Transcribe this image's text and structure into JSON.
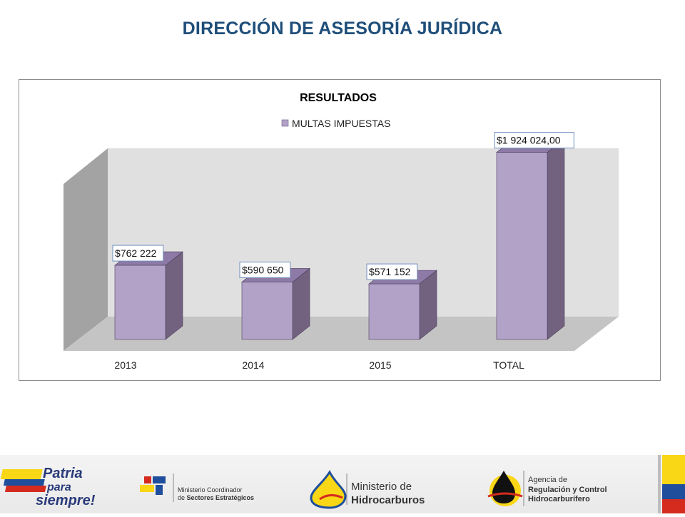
{
  "page": {
    "title": "DIRECCIÓN DE ASESORÍA JURÍDICA"
  },
  "chart_data": {
    "type": "bar",
    "title": "RESULTADOS",
    "categories": [
      "2013",
      "2014",
      "2015",
      "TOTAL"
    ],
    "series": [
      {
        "name": "MULTAS IMPUESTAS",
        "values": [
          762222,
          590650,
          571152,
          1924024
        ],
        "labels": [
          "$762 222",
          "$590 650",
          "$571 152",
          "$1 924 024,00"
        ],
        "color": "#B3A2C7"
      }
    ],
    "ylim": [
      0,
      2200000
    ],
    "grid": false,
    "legend_position": "top",
    "style": "3d"
  },
  "footer": {
    "logo1": {
      "line1": "Patria",
      "line2": "para",
      "line3": "siempre!"
    },
    "logo2": {
      "line1": "Ministerio Coordinador",
      "line2_prefix": "de ",
      "line2_bold": "Sectores Estratégicos"
    },
    "logo3": {
      "line1": "Ministerio de",
      "line2": "Hidrocarburos"
    },
    "logo4": {
      "line1": "Agencia de",
      "line2": "Regulación y Control",
      "line3": "Hidrocarburífero"
    }
  }
}
